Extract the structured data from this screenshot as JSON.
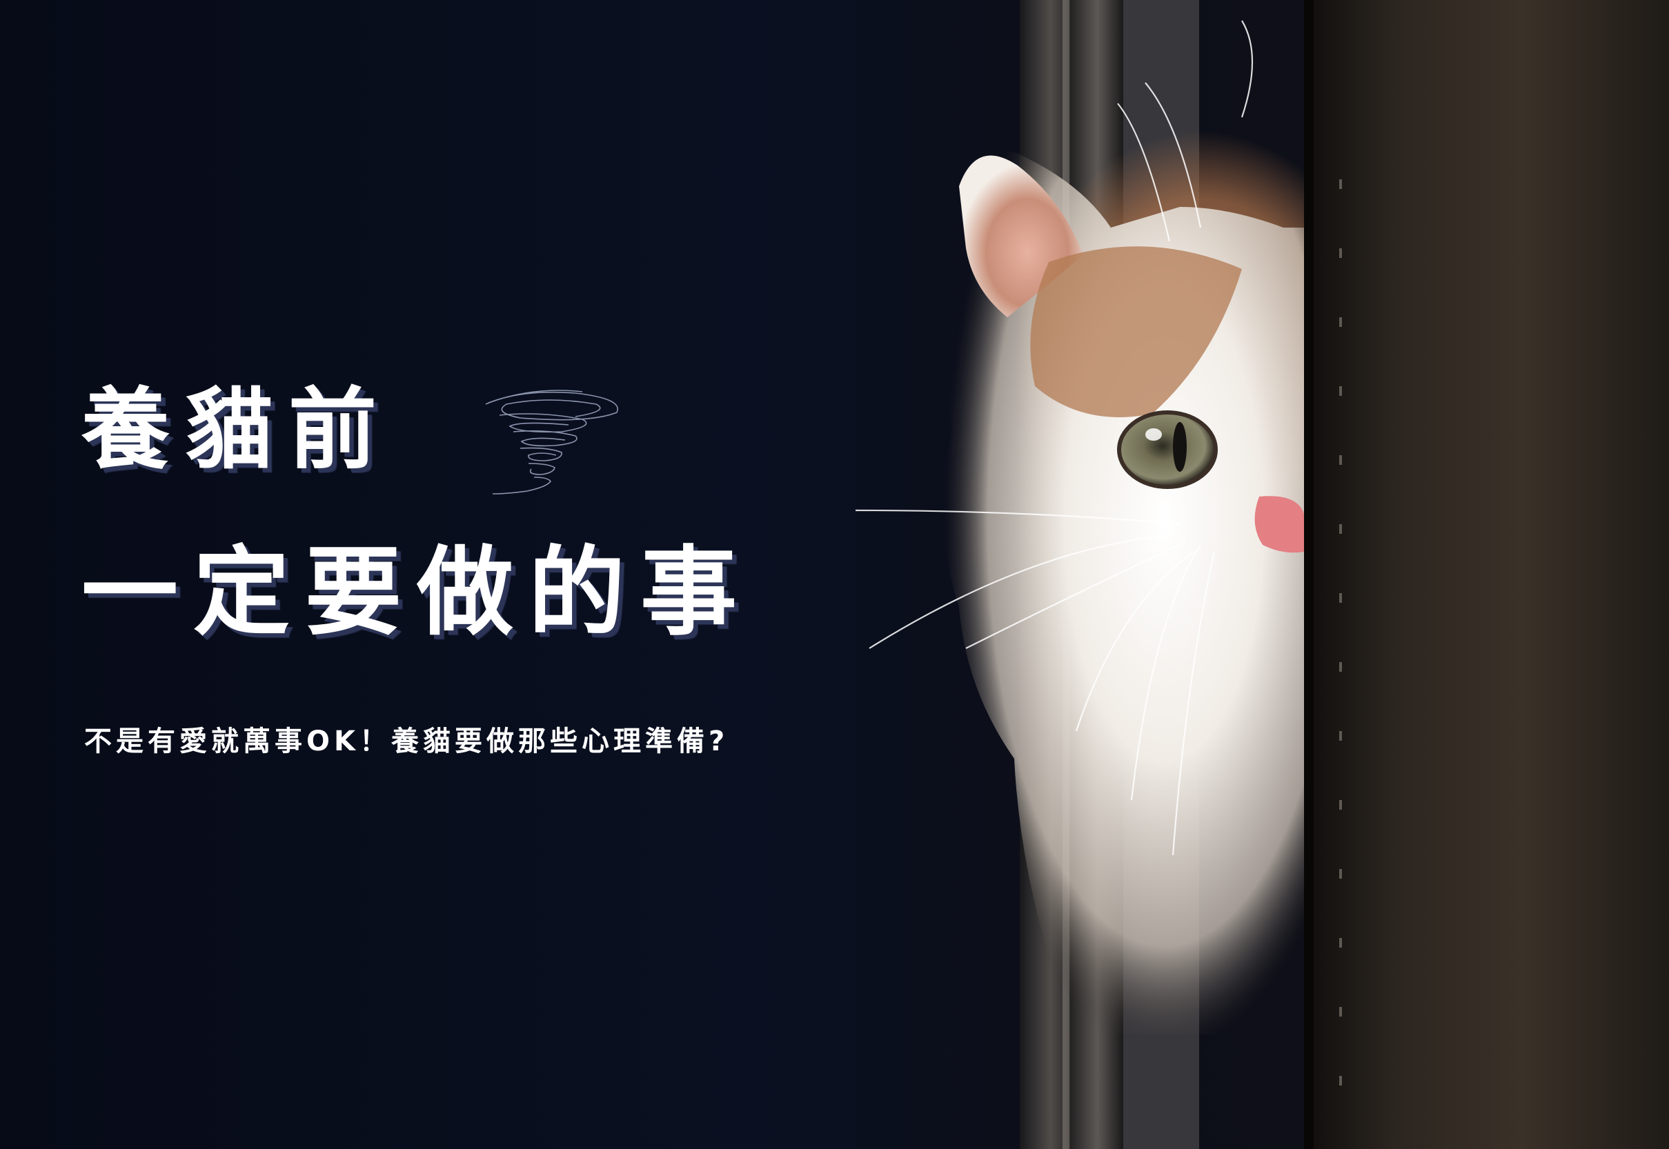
{
  "headline": {
    "line1": "養貓前",
    "line2": "一定要做的事"
  },
  "subtitle": "不是有愛就萬事OK！養貓要做那些心理準備?",
  "colors": {
    "background": "#0a0f1e",
    "text": "#ffffff",
    "text_shadow": "#2c3557",
    "scribble": "#9aa3bd"
  }
}
